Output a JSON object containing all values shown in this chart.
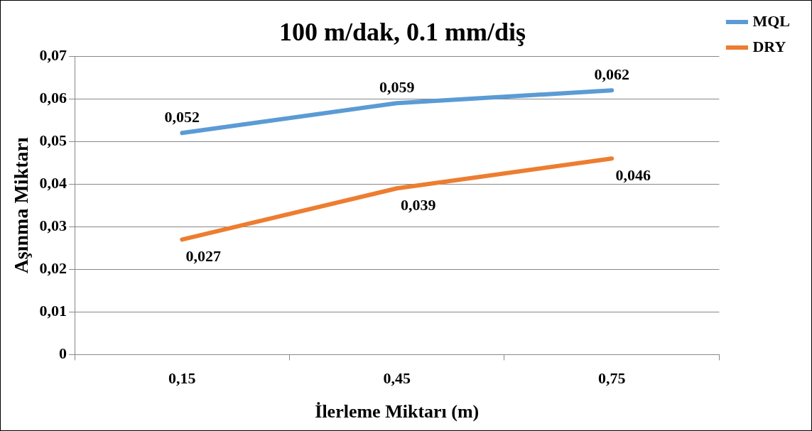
{
  "chart_data": {
    "type": "line",
    "title": "100 m/dak, 0.1 mm/diş",
    "xlabel": "İlerleme Miktarı (m)",
    "ylabel": "Aşınma Miktarı",
    "categories": [
      "0,15",
      "0,45",
      "0,75"
    ],
    "series": [
      {
        "name": "MQL",
        "color": "#5b9bd5",
        "values": [
          0.052,
          0.059,
          0.062
        ],
        "value_labels": [
          "0,052",
          "0,059",
          "0,062"
        ]
      },
      {
        "name": "DRY",
        "color": "#ed7d31",
        "values": [
          0.027,
          0.039,
          0.046
        ],
        "value_labels": [
          "0,027",
          "0,039",
          "0,046"
        ]
      }
    ],
    "ylim": [
      0,
      0.07
    ],
    "yticks": [
      0,
      {
        "value": 0.01,
        "label": "0,01"
      },
      {
        "value": 0.02,
        "label": "0,02"
      },
      {
        "value": 0.03,
        "label": "0,03"
      },
      {
        "value": 0.04,
        "label": "0,04"
      },
      {
        "value": 0.05,
        "label": "0,05"
      },
      {
        "value": 0.06,
        "label": "0,06"
      },
      {
        "value": 0.07,
        "label": "0,07"
      }
    ],
    "grid": "y",
    "legend": "top right",
    "marker": "none",
    "line_style": "solid"
  }
}
